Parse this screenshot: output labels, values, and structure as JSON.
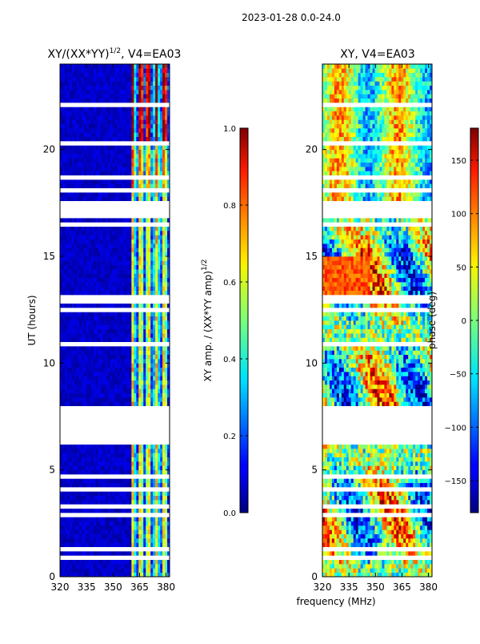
{
  "figure": {
    "suptitle": "2023-01-28 0.0-24.0",
    "xlabel": "frequency (MHz)",
    "ylabel": "UT (hours)"
  },
  "chart_data": [
    {
      "type": "heatmap",
      "title_main": "XY/(XX*YY)",
      "title_exp": "1/2",
      "title_suffix": ", V4=EA03",
      "xlim": [
        320,
        382
      ],
      "ylim": [
        0,
        24
      ],
      "x_ticks": [
        320,
        335,
        350,
        365,
        380
      ],
      "y_ticks": [
        0,
        5,
        10,
        15,
        20
      ],
      "xlabel": "frequency (MHz)",
      "ylabel": "UT (hours)",
      "colormap": "jet",
      "colorbar": {
        "label_main": "XY amp. / (XX*YY amp)",
        "label_exp": "1/2",
        "range": [
          0.0,
          1.0
        ],
        "ticks": [
          "0.0",
          "0.2",
          "0.4",
          "0.6",
          "0.8",
          "1.0"
        ],
        "tick_values": [
          0.0,
          0.2,
          0.4,
          0.6,
          0.8,
          1.0
        ]
      }
    },
    {
      "type": "heatmap",
      "title": "XY, V4=EA03",
      "xlim": [
        320,
        382
      ],
      "ylim": [
        0,
        24
      ],
      "x_ticks": [
        320,
        335,
        350,
        365,
        380
      ],
      "y_ticks": [
        0,
        5,
        10,
        15,
        20
      ],
      "colormap": "jet",
      "colorbar": {
        "label": "phase (deg)",
        "range": [
          -180,
          180
        ],
        "ticks": [
          "−150",
          "−100",
          "−50",
          "0",
          "50",
          "100",
          "150"
        ],
        "tick_values": [
          -150,
          -100,
          -50,
          0,
          50,
          100,
          150
        ]
      }
    }
  ]
}
